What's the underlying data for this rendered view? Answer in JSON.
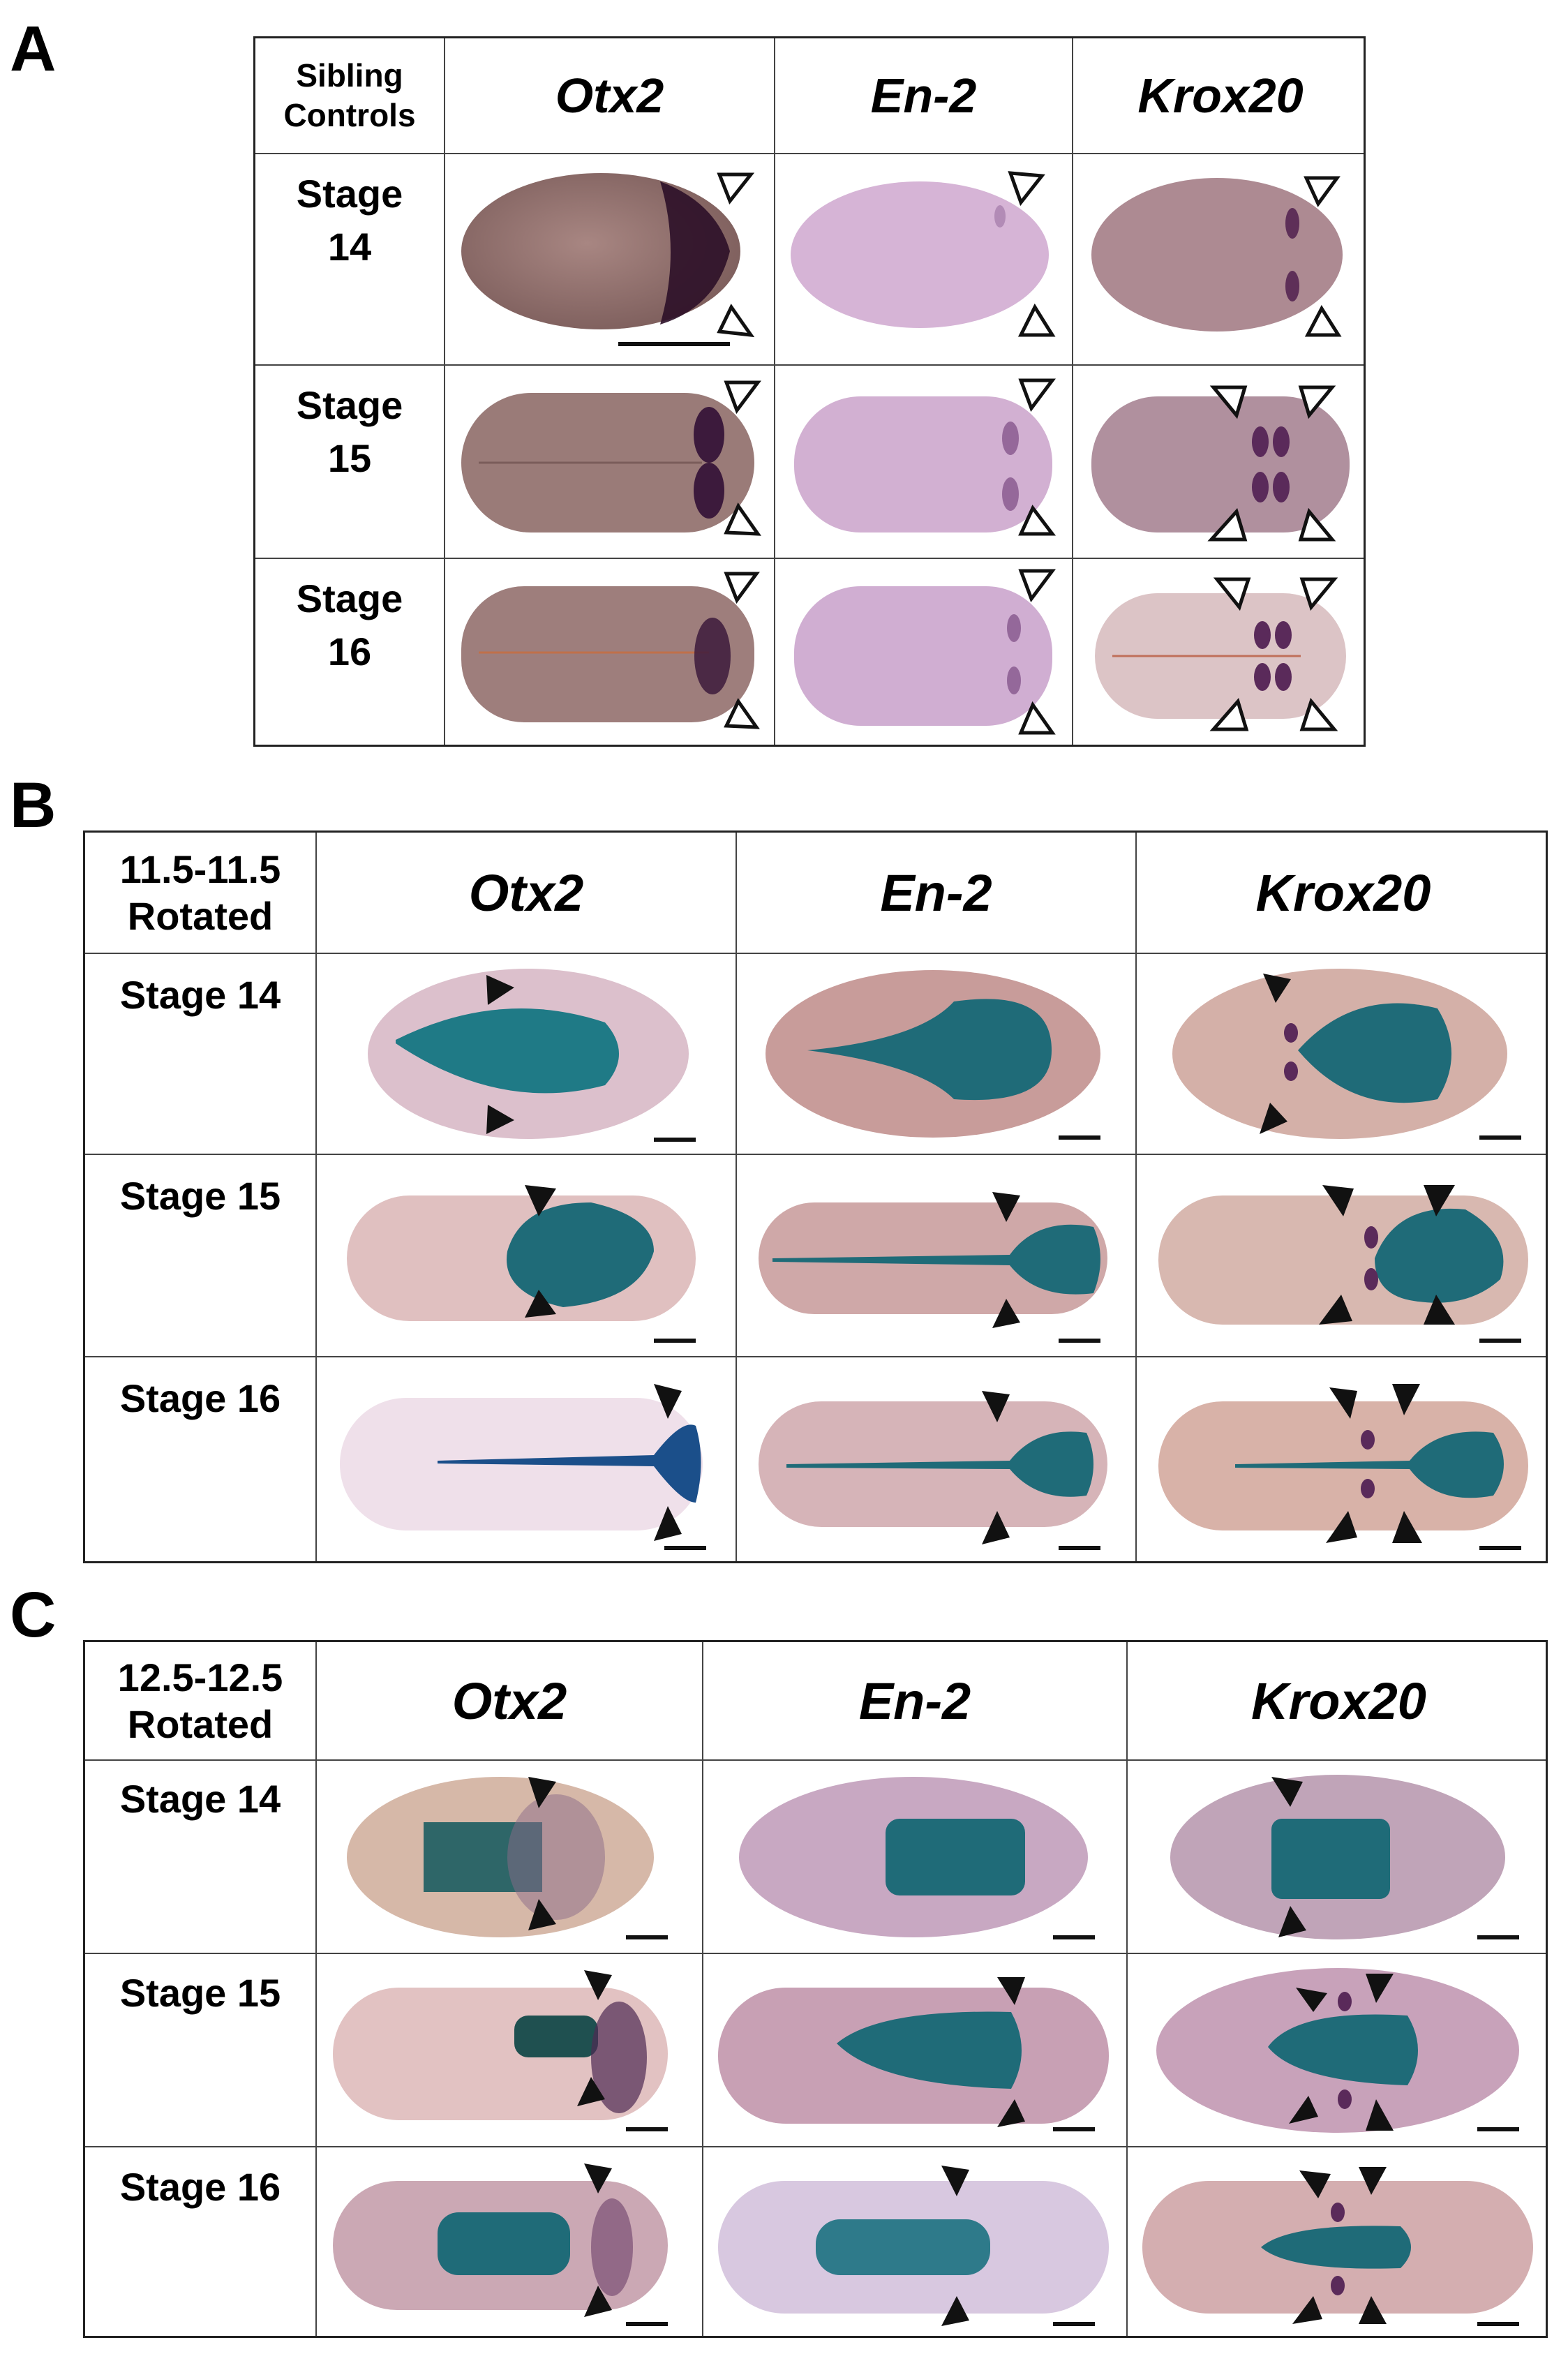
{
  "panels": [
    {
      "letter": "A",
      "corner_line1": "Sibling",
      "corner_line2": "Controls",
      "headers": [
        "Otx2",
        "En-2",
        "Krox20"
      ],
      "rows": [
        {
          "line1": "Stage",
          "line2": "14"
        },
        {
          "line1": "Stage",
          "line2": "15"
        },
        {
          "line1": "Stage",
          "line2": "16"
        }
      ]
    },
    {
      "letter": "B",
      "corner_line1": "11.5-11.5",
      "corner_line2": "Rotated",
      "headers": [
        "Otx2",
        "En-2",
        "Krox20"
      ],
      "rows": [
        {
          "label": "Stage 14"
        },
        {
          "label": "Stage 15"
        },
        {
          "label": "Stage 16"
        }
      ]
    },
    {
      "letter": "C",
      "corner_line1": "12.5-12.5",
      "corner_line2": "Rotated",
      "headers": [
        "Otx2",
        "En-2",
        "Krox20"
      ],
      "rows": [
        {
          "label": "Stage 14"
        },
        {
          "label": "Stage 15"
        },
        {
          "label": "Stage 16"
        }
      ]
    }
  ],
  "colors": {
    "embryo_brown": "#9c7a78",
    "embryo_pink": "#d8b4cc",
    "stain_purple": "#3c1a3c",
    "stain_blue": "#1f6b78",
    "arrow_black": "#111111"
  }
}
